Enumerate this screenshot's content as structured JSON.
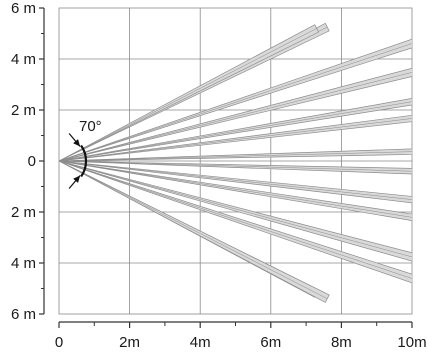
{
  "diagram": {
    "units_x": "m",
    "units_y": "m",
    "x_range": [
      0,
      10
    ],
    "y_range": [
      -6,
      6
    ],
    "x_ticks": [
      {
        "value": 0,
        "label": "0"
      },
      {
        "value": 2,
        "label": "2m"
      },
      {
        "value": 4,
        "label": "4m"
      },
      {
        "value": 6,
        "label": "6m"
      },
      {
        "value": 8,
        "label": "8m"
      },
      {
        "value": 10,
        "label": "10m"
      }
    ],
    "y_ticks": [
      {
        "value": 6,
        "label": "6 m"
      },
      {
        "value": 4,
        "label": "4 m"
      },
      {
        "value": 2,
        "label": "2 m"
      },
      {
        "value": 0,
        "label": "0"
      },
      {
        "value": -2,
        "label": "2 m"
      },
      {
        "value": -4,
        "label": "4 m"
      },
      {
        "value": -6,
        "label": "6 m"
      }
    ],
    "grid": true,
    "field_of_view": {
      "angle_label": "70°",
      "angle_degrees": 70
    },
    "beams": [
      {
        "tip": [
          7.6,
          5.25
        ],
        "length": 7.6
      },
      {
        "tip": [
          7.3,
          5.2
        ],
        "length": 7.3
      },
      {
        "tip": [
          10.2,
          4.7
        ],
        "length": 10.2
      },
      {
        "tip": [
          10.5,
          3.65
        ],
        "length": 10.5
      },
      {
        "tip": [
          12.9,
          3.0
        ],
        "length": 12.9
      },
      {
        "tip": [
          13.2,
          2.2
        ],
        "length": 13.2
      },
      {
        "tip": [
          15.0,
          0.55
        ],
        "length": 15.0
      },
      {
        "tip": [
          15.0,
          -0.6
        ],
        "length": 15.0
      },
      {
        "tip": [
          13.2,
          -2.0
        ],
        "length": 13.2
      },
      {
        "tip": [
          12.9,
          -2.85
        ],
        "length": 12.9
      },
      {
        "tip": [
          10.5,
          -3.95
        ],
        "length": 10.5
      },
      {
        "tip": [
          10.2,
          -4.7
        ],
        "length": 10.2
      },
      {
        "tip": [
          7.3,
          -5.2
        ],
        "length": 7.3
      },
      {
        "tip": [
          7.6,
          -5.4
        ],
        "length": 7.6
      }
    ],
    "beam_color": "#d9d9d9",
    "beam_edge_color": "#8c8c8c",
    "grid_color": "#8a8a8a",
    "axis_color": "#333333"
  }
}
